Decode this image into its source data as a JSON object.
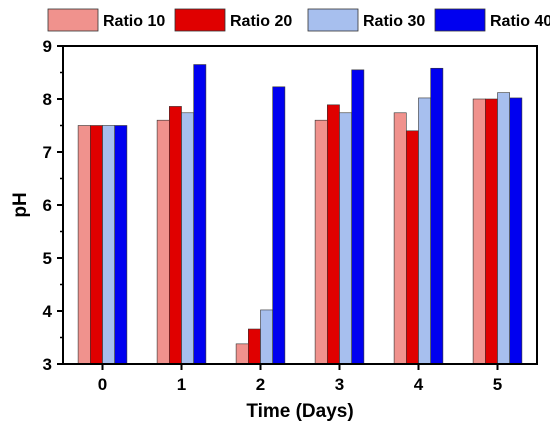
{
  "chart_data": {
    "type": "bar",
    "xlabel": "Time (Days)",
    "ylabel": "pH",
    "ylim": [
      3,
      9
    ],
    "yticks": [
      3,
      4,
      5,
      6,
      7,
      8,
      9
    ],
    "categories": [
      "0",
      "1",
      "2",
      "3",
      "4",
      "5"
    ],
    "legend_position": "top",
    "series": [
      {
        "name": "Ratio 10",
        "color": "#f0928d",
        "values": [
          7.5,
          7.6,
          3.38,
          7.6,
          7.74,
          8.0
        ]
      },
      {
        "name": "Ratio 20",
        "color": "#e00000",
        "values": [
          7.5,
          7.86,
          3.66,
          7.89,
          7.4,
          8.0
        ]
      },
      {
        "name": "Ratio 30",
        "color": "#a7bfee",
        "values": [
          7.5,
          7.74,
          4.02,
          7.74,
          8.02,
          8.12
        ]
      },
      {
        "name": "Ratio 40",
        "color": "#0000f0",
        "values": [
          7.5,
          8.65,
          8.23,
          8.55,
          8.58,
          8.02
        ]
      }
    ]
  }
}
